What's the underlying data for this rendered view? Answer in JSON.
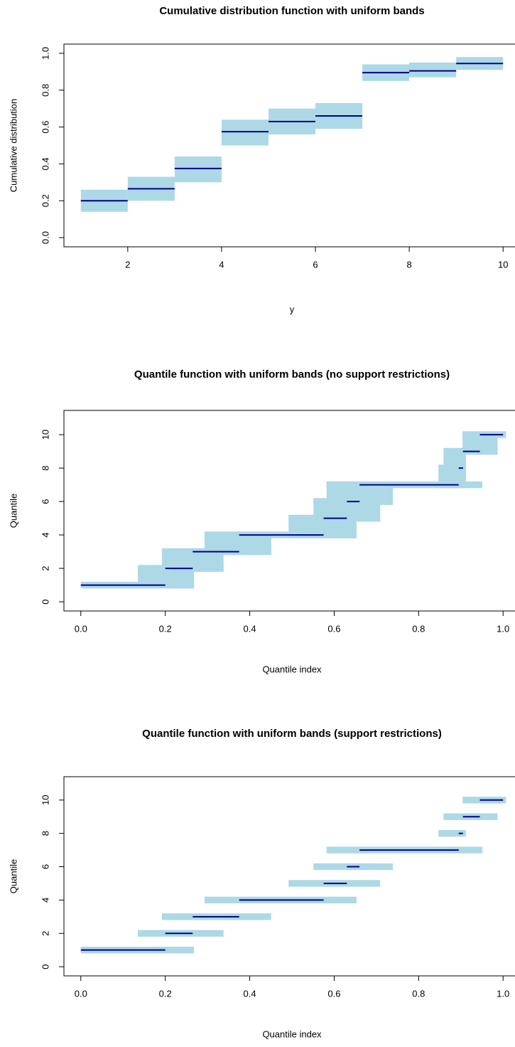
{
  "chart_data": [
    {
      "type": "step_band",
      "title": "Cumulative distribution function with uniform bands",
      "x_label": "y",
      "y_label": "Cumulative distribution",
      "x_start": [
        1,
        2,
        3,
        4,
        5,
        6,
        7,
        8,
        9
      ],
      "x_end": [
        2,
        3,
        4,
        5,
        6,
        7,
        8,
        9,
        10
      ],
      "values": [
        0.2,
        0.265,
        0.375,
        0.575,
        0.63,
        0.66,
        0.895,
        0.905,
        0.945
      ],
      "lower": [
        0.14,
        0.2,
        0.3,
        0.5,
        0.56,
        0.59,
        0.85,
        0.87,
        0.91
      ],
      "upper": [
        0.26,
        0.33,
        0.44,
        0.64,
        0.7,
        0.73,
        0.94,
        0.95,
        0.98
      ],
      "line_color": "#00008b",
      "band_color": "#add8e6",
      "xlim": [
        0.64,
        10.36
      ],
      "ylim": [
        -0.05,
        1.05
      ],
      "xticks": [
        2,
        4,
        6,
        8,
        10
      ],
      "yticks": [
        {
          "value": 0,
          "label": "0.0"
        },
        0.2,
        0.4,
        0.6,
        0.8,
        {
          "value": 1,
          "label": "1.0"
        }
      ]
    },
    {
      "type": "quantile_band",
      "title": "Quantile function with uniform bands (no support restrictions)",
      "x_label": "Quantile index",
      "y_label": "Quantile",
      "values": [
        1,
        2,
        3,
        4,
        5,
        6,
        7,
        8,
        9,
        10
      ],
      "x_start": [
        0,
        0.2,
        0.265,
        0.375,
        0.575,
        0.63,
        0.66,
        0.895,
        0.905,
        0.945
      ],
      "x_end": [
        0.2,
        0.265,
        0.375,
        0.575,
        0.63,
        0.66,
        0.895,
        0.905,
        0.945,
        1
      ],
      "band_x_lower": [
        0,
        0.135,
        0.192,
        0.293,
        0.492,
        0.551,
        0.582,
        0.847,
        0.859,
        0.904
      ],
      "band_x_upper": [
        0.268,
        0.338,
        0.451,
        0.653,
        0.709,
        0.739,
        0.951,
        0.912,
        0.987,
        1.007
      ],
      "band_lower": [
        0.8,
        1.8,
        2.8,
        3.8,
        4.8,
        5.8,
        6.8,
        7.8,
        8.8,
        9.8
      ],
      "band_upper": [
        1.2,
        2.2,
        3.2,
        4.2,
        5.2,
        6.2,
        7.2,
        8.2,
        9.2,
        10.2
      ],
      "connect_bands": true,
      "line_color": "#00008b",
      "band_color": "#add8e6",
      "xlim": [
        -0.04,
        1.04
      ],
      "ylim": [
        -0.55,
        11.45
      ],
      "xticks": [
        {
          "value": 0,
          "label": "0.0"
        },
        0.2,
        0.4,
        0.6,
        0.8,
        {
          "value": 1,
          "label": "1.0"
        }
      ],
      "yticks": [
        0,
        2,
        4,
        6,
        8,
        10
      ]
    },
    {
      "type": "quantile_band",
      "title": "Quantile function with uniform bands (support restrictions)",
      "x_label": "Quantile index",
      "y_label": "Quantile",
      "values": [
        1,
        2,
        3,
        4,
        5,
        6,
        7,
        8,
        9,
        10
      ],
      "x_start": [
        0,
        0.2,
        0.265,
        0.375,
        0.575,
        0.63,
        0.66,
        0.895,
        0.905,
        0.945
      ],
      "x_end": [
        0.2,
        0.265,
        0.375,
        0.575,
        0.63,
        0.66,
        0.895,
        0.905,
        0.945,
        1
      ],
      "band_x_lower": [
        0,
        0.135,
        0.192,
        0.293,
        0.492,
        0.551,
        0.582,
        0.847,
        0.859,
        0.904
      ],
      "band_x_upper": [
        0.268,
        0.338,
        0.451,
        0.653,
        0.709,
        0.739,
        0.951,
        0.912,
        0.987,
        1.007
      ],
      "band_lower": [
        0.8,
        1.8,
        2.8,
        3.8,
        4.8,
        5.8,
        6.8,
        7.8,
        8.8,
        9.8
      ],
      "band_upper": [
        1.2,
        2.2,
        3.2,
        4.2,
        5.2,
        6.2,
        7.2,
        8.2,
        9.2,
        10.2
      ],
      "connect_bands": false,
      "line_color": "#00008b",
      "band_color": "#add8e6",
      "xlim": [
        -0.04,
        1.04
      ],
      "ylim": [
        -0.55,
        11.4
      ],
      "xticks": [
        {
          "value": 0,
          "label": "0.0"
        },
        0.2,
        0.4,
        0.6,
        0.8,
        {
          "value": 1,
          "label": "1.0"
        }
      ],
      "yticks": [
        0,
        2,
        4,
        6,
        8,
        10
      ]
    }
  ]
}
